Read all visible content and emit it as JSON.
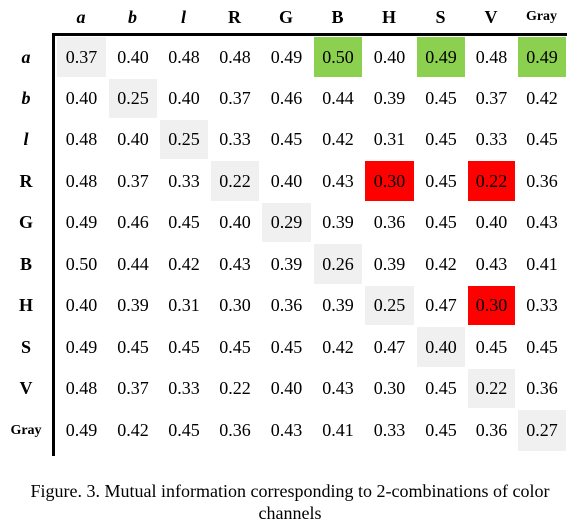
{
  "table": {
    "col_headers": [
      "a",
      "b",
      "l",
      "R",
      "G",
      "B",
      "H",
      "S",
      "V",
      "Gray"
    ],
    "row_headers": [
      "a",
      "b",
      "l",
      "R",
      "G",
      "B",
      "H",
      "S",
      "V",
      "Gray"
    ],
    "italic_labels": [
      "a",
      "b",
      "l"
    ],
    "rows": [
      [
        "0.37",
        "0.40",
        "0.48",
        "0.48",
        "0.49",
        "0.50",
        "0.40",
        "0.49",
        "0.48",
        "0.49"
      ],
      [
        "0.40",
        "0.25",
        "0.40",
        "0.37",
        "0.46",
        "0.44",
        "0.39",
        "0.45",
        "0.37",
        "0.42"
      ],
      [
        "0.48",
        "0.40",
        "0.25",
        "0.33",
        "0.45",
        "0.42",
        "0.31",
        "0.45",
        "0.33",
        "0.45"
      ],
      [
        "0.48",
        "0.37",
        "0.33",
        "0.22",
        "0.40",
        "0.43",
        "0.30",
        "0.45",
        "0.22",
        "0.36"
      ],
      [
        "0.49",
        "0.46",
        "0.45",
        "0.40",
        "0.29",
        "0.39",
        "0.36",
        "0.45",
        "0.40",
        "0.43"
      ],
      [
        "0.50",
        "0.44",
        "0.42",
        "0.43",
        "0.39",
        "0.26",
        "0.39",
        "0.42",
        "0.43",
        "0.41"
      ],
      [
        "0.40",
        "0.39",
        "0.31",
        "0.30",
        "0.36",
        "0.39",
        "0.25",
        "0.47",
        "0.30",
        "0.33"
      ],
      [
        "0.49",
        "0.45",
        "0.45",
        "0.45",
        "0.45",
        "0.42",
        "0.47",
        "0.40",
        "0.45",
        "0.45"
      ],
      [
        "0.48",
        "0.37",
        "0.33",
        "0.22",
        "0.40",
        "0.43",
        "0.30",
        "0.45",
        "0.22",
        "0.36"
      ],
      [
        "0.49",
        "0.42",
        "0.45",
        "0.36",
        "0.43",
        "0.41",
        "0.33",
        "0.45",
        "0.36",
        "0.27"
      ]
    ],
    "highlights": {
      "green": [
        [
          0,
          5
        ],
        [
          0,
          7
        ],
        [
          0,
          9
        ]
      ],
      "red": [
        [
          3,
          6
        ],
        [
          3,
          8
        ],
        [
          6,
          8
        ]
      ]
    },
    "colors": {
      "diagonal": "#f0f0f0",
      "green": "#8cd04f",
      "red": "#ff0000"
    }
  },
  "caption": "Figure. 3. Mutual information corresponding to 2-combinations of color channels"
}
